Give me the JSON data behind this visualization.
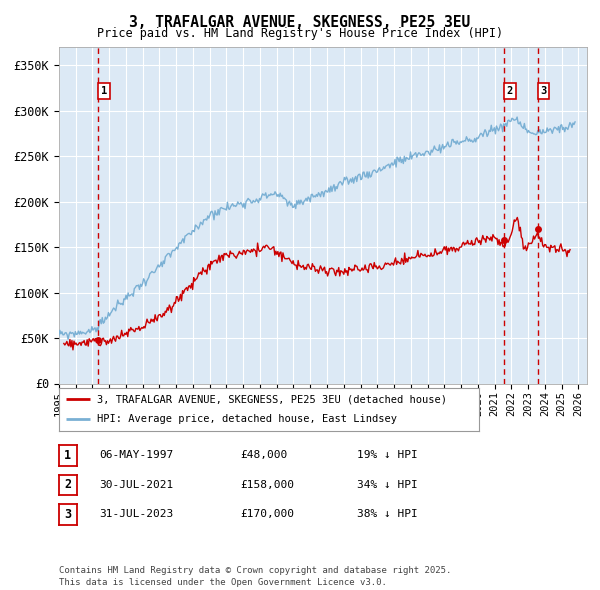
{
  "title": "3, TRAFALGAR AVENUE, SKEGNESS, PE25 3EU",
  "subtitle": "Price paid vs. HM Land Registry's House Price Index (HPI)",
  "bg_color": "#dce9f5",
  "grid_color": "#ffffff",
  "red_line_color": "#cc0000",
  "blue_line_color": "#7ab0d4",
  "sale_points": [
    {
      "date_num": 1997.35,
      "price": 48000,
      "label": "1",
      "date_str": "06-MAY-1997",
      "price_str": "£48,000",
      "hpi_str": "19% ↓ HPI"
    },
    {
      "date_num": 2021.58,
      "price": 158000,
      "label": "2",
      "date_str": "30-JUL-2021",
      "price_str": "£158,000",
      "hpi_str": "34% ↓ HPI"
    },
    {
      "date_num": 2023.58,
      "price": 170000,
      "label": "3",
      "date_str": "31-JUL-2023",
      "price_str": "£170,000",
      "hpi_str": "38% ↓ HPI"
    }
  ],
  "xmin": 1995.0,
  "xmax": 2026.5,
  "ymin": 0,
  "ymax": 370000,
  "yticks": [
    0,
    50000,
    100000,
    150000,
    200000,
    250000,
    300000,
    350000
  ],
  "ytick_labels": [
    "£0",
    "£50K",
    "£100K",
    "£150K",
    "£200K",
    "£250K",
    "£300K",
    "£350K"
  ],
  "legend_line1": "3, TRAFALGAR AVENUE, SKEGNESS, PE25 3EU (detached house)",
  "legend_line2": "HPI: Average price, detached house, East Lindsey",
  "footer": "Contains HM Land Registry data © Crown copyright and database right 2025.\nThis data is licensed under the Open Government Licence v3.0."
}
